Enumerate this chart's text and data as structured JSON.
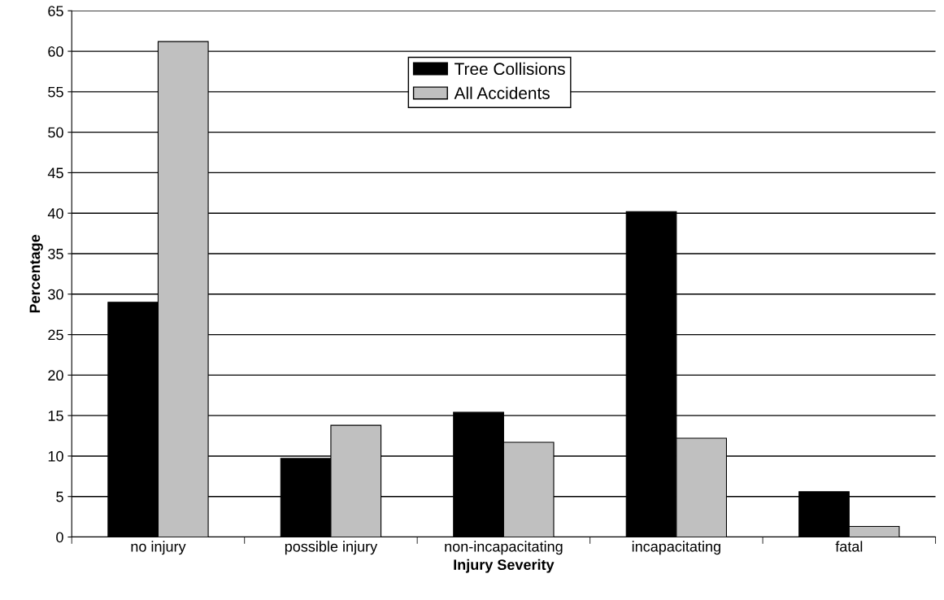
{
  "chart_data": {
    "type": "bar",
    "xlabel": "Injury Severity",
    "ylabel": "Percentage",
    "categories": [
      "no injury",
      "possible injury",
      "non-incapacitating",
      "incapacitating",
      "fatal"
    ],
    "series": [
      {
        "name": "Tree Collisions",
        "color": "#000000",
        "values": [
          29,
          9.7,
          15.4,
          40.2,
          5.6
        ]
      },
      {
        "name": "All Accidents",
        "color": "#c0c0c0",
        "values": [
          61.2,
          13.8,
          11.7,
          12.2,
          1.3
        ]
      }
    ],
    "ylim": [
      0,
      65
    ],
    "yticks": [
      0,
      5,
      10,
      15,
      20,
      25,
      30,
      35,
      40,
      45,
      50,
      55,
      60,
      65
    ],
    "grid": "y",
    "legend": "top"
  }
}
